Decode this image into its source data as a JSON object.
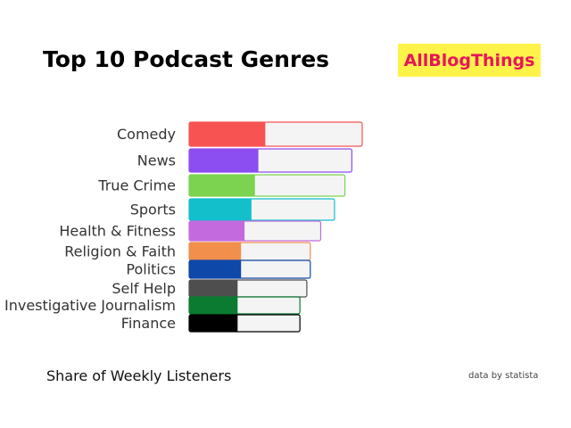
{
  "header": {
    "title": "Top 10 Podcast Genres"
  },
  "brand": {
    "label": "AllBlogThings",
    "background": "#FFF34A",
    "color": "#E8155A"
  },
  "footer": {
    "source": "data by statista"
  },
  "chart_data": {
    "type": "bar",
    "orientation": "horizontal",
    "title": "Top 10 Podcast Genres",
    "xlabel": "Share of Weekly Listeners",
    "ylabel": "",
    "xlim": [
      0,
      100
    ],
    "grid": false,
    "legend": "none",
    "categories": [
      "Comedy",
      "News",
      "True Crime",
      "Sports",
      "Health & Fitness",
      "Religion & Faith",
      "Politics",
      "Self Help",
      "Investigative Journalism",
      "Finance"
    ],
    "values": [
      22,
      20,
      19,
      18,
      16,
      15,
      15,
      14,
      14,
      14
    ],
    "track_values": [
      50,
      47,
      45,
      42,
      38,
      35,
      35,
      34,
      32,
      32
    ],
    "colors": [
      "#F75353",
      "#8C4EF0",
      "#7CD34F",
      "#12BFCB",
      "#C46ADF",
      "#F28F4D",
      "#0E48A8",
      "#4E4E4E",
      "#0A7B31",
      "#000000"
    ]
  }
}
